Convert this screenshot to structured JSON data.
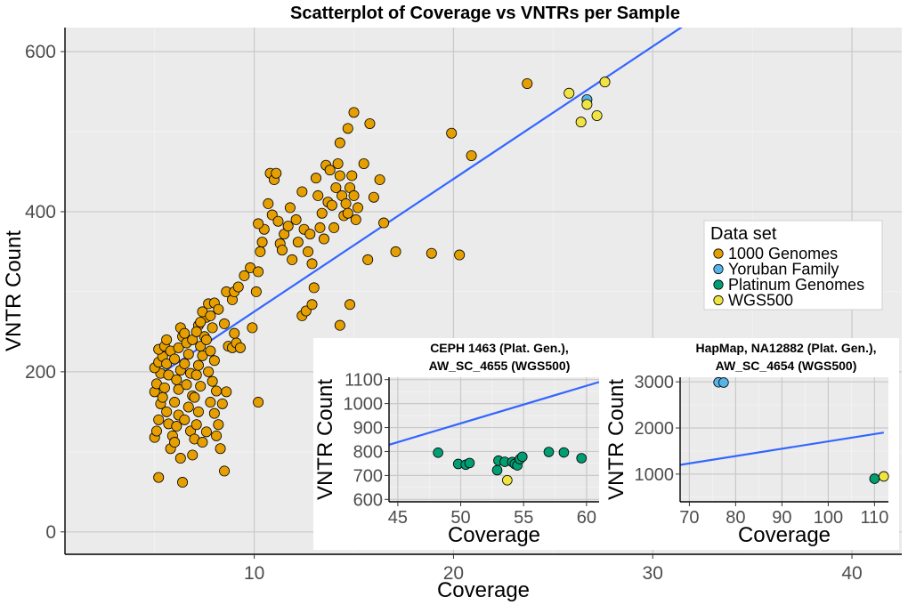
{
  "colors": {
    "1000 Genomes": "#e69f00",
    "Yoruban Family": "#56b4e9",
    "Platinum Genomes": "#009e73",
    "WGS500": "#f0e442",
    "fit_line": "#3366ff"
  },
  "legend": {
    "title": "Data set",
    "entries": [
      "1000 Genomes",
      "Yoruban Family",
      "Platinum Genomes",
      "WGS500"
    ]
  },
  "chart_data": [
    {
      "id": "main",
      "type": "scatter",
      "title": "Scatterplot of Coverage vs VNTRs per Sample",
      "xlabel": "Coverage",
      "ylabel": "VNTR Count",
      "xlim": [
        0.5,
        42.5
      ],
      "ylim": [
        -28,
        630
      ],
      "xticks": [
        10,
        20,
        30,
        40
      ],
      "yticks": [
        0,
        200,
        400,
        600
      ],
      "grid": true,
      "legend_position": "right",
      "fit_line": {
        "x1": 5.4,
        "y1": 199,
        "x2": 31.6,
        "y2": 633
      },
      "series": [
        {
          "name": "1000 Genomes",
          "points": [
            [
              5.2,
              68
            ],
            [
              6.4,
              62
            ],
            [
              5.0,
              118
            ],
            [
              5.1,
              126
            ],
            [
              5.2,
              140
            ],
            [
              5.3,
              160
            ],
            [
              5.0,
              175
            ],
            [
              5.1,
              185
            ],
            [
              5.3,
              198
            ],
            [
              5.0,
              205
            ],
            [
              5.2,
              212
            ],
            [
              5.4,
              219
            ],
            [
              5.2,
              228
            ],
            [
              5.5,
              232
            ],
            [
              5.6,
              240
            ],
            [
              5.8,
              226
            ],
            [
              5.6,
              210
            ],
            [
              5.7,
              196
            ],
            [
              5.5,
              180
            ],
            [
              5.4,
              168
            ],
            [
              5.6,
              150
            ],
            [
              5.7,
              135
            ],
            [
              5.9,
              120
            ],
            [
              5.8,
              104
            ],
            [
              6.0,
              112
            ],
            [
              6.1,
              132
            ],
            [
              6.2,
              146
            ],
            [
              6.0,
              162
            ],
            [
              6.2,
              178
            ],
            [
              6.1,
              190
            ],
            [
              6.3,
              202
            ],
            [
              6.0,
              216
            ],
            [
              6.2,
              230
            ],
            [
              6.4,
              244
            ],
            [
              6.3,
              255
            ],
            [
              6.5,
              248
            ],
            [
              6.6,
              236
            ],
            [
              6.7,
              222
            ],
            [
              6.5,
              210
            ],
            [
              6.8,
              198
            ],
            [
              6.6,
              184
            ],
            [
              6.9,
              170
            ],
            [
              6.7,
              156
            ],
            [
              6.5,
              140
            ],
            [
              6.8,
              126
            ],
            [
              7.0,
              116
            ],
            [
              7.1,
              134
            ],
            [
              7.2,
              150
            ],
            [
              7.0,
              168
            ],
            [
              7.3,
              182
            ],
            [
              7.1,
              196
            ],
            [
              7.2,
              208
            ],
            [
              7.4,
              220
            ],
            [
              7.3,
              232
            ],
            [
              7.5,
              244
            ],
            [
              7.2,
              258
            ],
            [
              7.6,
              268
            ],
            [
              7.4,
              275
            ],
            [
              7.7,
              285
            ],
            [
              7.8,
              270
            ],
            [
              7.9,
              255
            ],
            [
              7.6,
              240
            ],
            [
              7.8,
              226
            ],
            [
              8.0,
              214
            ],
            [
              7.7,
              200
            ],
            [
              7.9,
              188
            ],
            [
              8.1,
              176
            ],
            [
              7.8,
              162
            ],
            [
              8.0,
              148
            ],
            [
              8.2,
              134
            ],
            [
              8.1,
              120
            ],
            [
              8.3,
              104
            ],
            [
              6.9,
              96
            ],
            [
              7.4,
              112
            ],
            [
              6.3,
              92
            ],
            [
              7.6,
              125
            ],
            [
              8.4,
              160
            ],
            [
              8.6,
              175
            ],
            [
              8.5,
              260
            ],
            [
              8.7,
              232
            ],
            [
              8.9,
              230
            ],
            [
              9.1,
              236
            ],
            [
              9.3,
              230
            ],
            [
              9.0,
              248
            ],
            [
              6.9,
              240
            ],
            [
              7.1,
              250
            ],
            [
              7.3,
              262
            ],
            [
              8.0,
              286
            ],
            [
              8.2,
              278
            ],
            [
              8.5,
              76
            ],
            [
              8.6,
              300
            ],
            [
              8.9,
              290
            ],
            [
              9.0,
              300
            ],
            [
              9.2,
              306
            ],
            [
              9.5,
              320
            ],
            [
              9.8,
              330
            ],
            [
              9.9,
              255
            ],
            [
              10.1,
              300
            ],
            [
              10.2,
              325
            ],
            [
              10.3,
              350
            ],
            [
              10.4,
              362
            ],
            [
              10.5,
              378
            ],
            [
              10.2,
              385
            ],
            [
              10.7,
              410
            ],
            [
              10.8,
              448
            ],
            [
              11.0,
              440
            ],
            [
              11.1,
              448
            ],
            [
              10.9,
              396
            ],
            [
              11.2,
              388
            ],
            [
              11.3,
              360
            ],
            [
              11.5,
              372
            ],
            [
              11.4,
              352
            ],
            [
              11.7,
              382
            ],
            [
              11.8,
              405
            ],
            [
              11.9,
              340
            ],
            [
              12.1,
              390
            ],
            [
              12.2,
              362
            ],
            [
              12.4,
              425
            ],
            [
              12.5,
              378
            ],
            [
              12.7,
              350
            ],
            [
              12.8,
              372
            ],
            [
              12.9,
              335
            ],
            [
              13.0,
              305
            ],
            [
              13.1,
              442
            ],
            [
              13.2,
              420
            ],
            [
              13.3,
              380
            ],
            [
              13.4,
              398
            ],
            [
              13.6,
              458
            ],
            [
              13.8,
              452
            ],
            [
              13.7,
              412
            ],
            [
              13.5,
              366
            ],
            [
              13.9,
              408
            ],
            [
              14.0,
              380
            ],
            [
              14.1,
              430
            ],
            [
              14.2,
              460
            ],
            [
              14.3,
              445
            ],
            [
              14.4,
              420
            ],
            [
              14.5,
              395
            ],
            [
              14.6,
              410
            ],
            [
              14.7,
              398
            ],
            [
              14.8,
              430
            ],
            [
              14.9,
              445
            ],
            [
              15.0,
              420
            ],
            [
              15.1,
              390
            ],
            [
              15.2,
              405
            ],
            [
              14.3,
              486
            ],
            [
              15.0,
              524
            ],
            [
              14.7,
              504
            ],
            [
              15.5,
              460
            ],
            [
              15.8,
              510
            ],
            [
              16.0,
              418
            ],
            [
              16.3,
              440
            ],
            [
              15.7,
              340
            ],
            [
              16.5,
              386
            ],
            [
              17.1,
              350
            ],
            [
              18.9,
              348
            ],
            [
              20.3,
              346
            ],
            [
              14.3,
              258
            ],
            [
              14.8,
              284
            ],
            [
              12.4,
              270
            ],
            [
              12.6,
              276
            ],
            [
              12.9,
              284
            ],
            [
              10.2,
              162
            ],
            [
              19.9,
              498
            ],
            [
              20.9,
              470
            ],
            [
              23.7,
              560
            ]
          ]
        },
        {
          "name": "Yoruban Family",
          "points": [
            [
              26.7,
              540
            ]
          ]
        },
        {
          "name": "Platinum Genomes",
          "points": []
        },
        {
          "name": "WGS500",
          "points": [
            [
              25.8,
              548
            ],
            [
              26.4,
              512
            ],
            [
              26.7,
              534
            ],
            [
              27.2,
              520
            ],
            [
              27.6,
              562
            ]
          ]
        }
      ]
    },
    {
      "id": "inset1",
      "type": "scatter",
      "title": "CEPH 1463 (Plat. Gen.), AW_SC_4655 (WGS500)",
      "title_lines": [
        "CEPH 1463 (Plat. Gen.),",
        "AW_SC_4655 (WGS500)"
      ],
      "xlabel": "Coverage",
      "ylabel": "VNTR Count",
      "xlim": [
        44.3,
        61
      ],
      "ylim": [
        590,
        1110
      ],
      "xticks": [
        45,
        50,
        55,
        60
      ],
      "yticks": [
        600,
        700,
        800,
        900,
        1000,
        1100
      ],
      "grid": true,
      "fit_line": {
        "x1": 44.3,
        "y1": 828,
        "x2": 61,
        "y2": 1090
      },
      "series": [
        {
          "name": "Platinum Genomes",
          "points": [
            [
              48.2,
              795
            ],
            [
              49.8,
              748
            ],
            [
              50.4,
              745
            ],
            [
              50.7,
              752
            ],
            [
              52.9,
              722
            ],
            [
              53.0,
              762
            ],
            [
              53.5,
              757
            ],
            [
              54.1,
              756
            ],
            [
              54.3,
              748
            ],
            [
              54.5,
              742
            ],
            [
              54.7,
              768
            ],
            [
              54.9,
              778
            ],
            [
              57.0,
              798
            ],
            [
              58.2,
              796
            ],
            [
              59.6,
              772
            ]
          ]
        },
        {
          "name": "WGS500",
          "points": [
            [
              53.7,
              680
            ]
          ]
        }
      ]
    },
    {
      "id": "inset2",
      "type": "scatter",
      "title": "HapMap, NA12882 (Plat. Gen.), AW_SC_4654 (WGS500)",
      "title_lines": [
        "HapMap, NA12882 (Plat. Gen.),",
        "AW_SC_4654 (WGS500)"
      ],
      "xlabel": "Coverage",
      "ylabel": "VNTR Count",
      "xlim": [
        68,
        113
      ],
      "ylim": [
        400,
        3100
      ],
      "xticks": [
        70,
        80,
        90,
        100,
        110
      ],
      "yticks": [
        1000,
        2000,
        3000
      ],
      "grid": true,
      "fit_line": {
        "x1": 68,
        "y1": 1200,
        "x2": 112,
        "y2": 1900
      },
      "series": [
        {
          "name": "Yoruban Family",
          "points": [
            [
              76.3,
              2990
            ],
            [
              77.4,
              2985
            ]
          ]
        },
        {
          "name": "Platinum Genomes",
          "points": [
            [
              110.0,
              900
            ]
          ]
        },
        {
          "name": "WGS500",
          "points": [
            [
              112.0,
              950
            ]
          ]
        }
      ]
    }
  ]
}
